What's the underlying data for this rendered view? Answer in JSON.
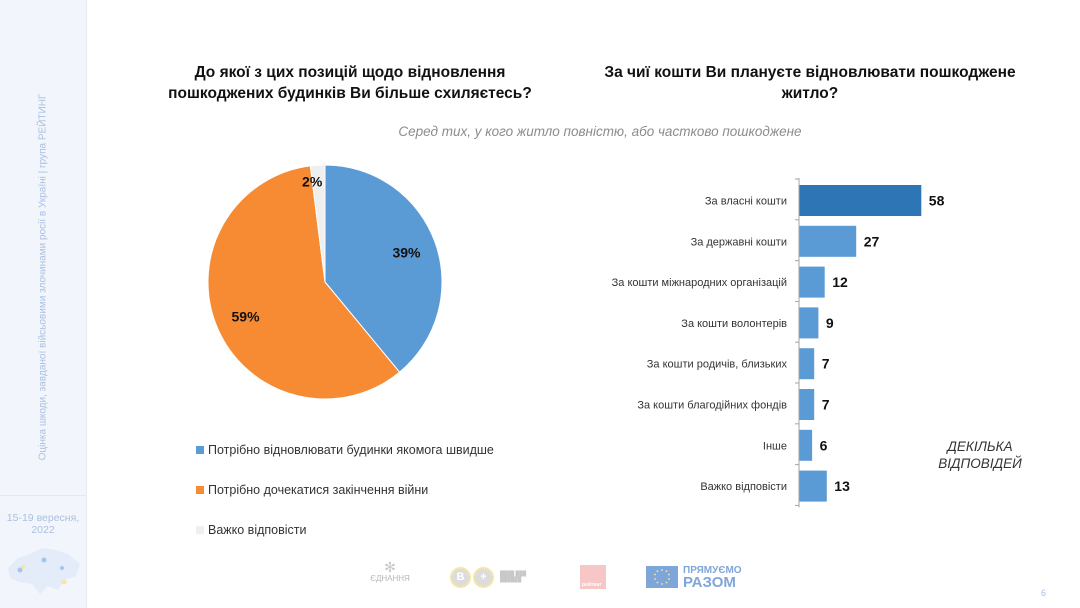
{
  "sidebar": {
    "vertical_text": "Оцінка шкоди, завданої війсьовими злочинами росії в Україні | група РЕЙТИНГ",
    "date_line1": "15-19 вересня,",
    "date_line2": "2022",
    "map_icon": "ukraine-map-icon"
  },
  "left": {
    "title": "До якої з цих позицій щодо відновлення пошкоджених будинків Ви більше схиляєтесь?"
  },
  "right": {
    "title": "За чиї кошти Ви плануєте відновлювати пошкоджене житло?",
    "note": "ДЕКІЛЬКА ВІДПОВІДЕЙ"
  },
  "subtitle": "Серед тих, у кого житло повністю, або частково пошкоджене",
  "footer": {
    "logos": [
      "ЄДНАННЯ",
      "В+",
      "РЕЙТИНГ",
      "ПРЯМУЄМО РАЗОМ"
    ],
    "eu_line1": "ПРЯМУЄМО",
    "eu_line2": "РАЗОМ",
    "ednannia": "ЄДНАННЯ",
    "rating": "рейтинг",
    "page_number": "6"
  },
  "colors": {
    "blue": "#5b9bd5",
    "dark_blue": "#2e75b6",
    "orange": "#f68b33",
    "light_gray": "#efefef"
  },
  "chart_data": [
    {
      "type": "pie",
      "title": "До якої з цих позицій щодо відновлення пошкоджених будинків Ви більше схиляєтесь?",
      "legend_position": "bottom",
      "slices": [
        {
          "label": "Потрібно відновлювати  будинки якомога швидше",
          "value": 39,
          "display": "39%",
          "color": "#5b9bd5"
        },
        {
          "label": "Потрібно дочекатися закінчення війни",
          "value": 59,
          "display": "59%",
          "color": "#f68b33"
        },
        {
          "label": "Важко відповісти",
          "value": 2,
          "display": "2%",
          "color": "#efefef"
        }
      ]
    },
    {
      "type": "bar",
      "orientation": "horizontal",
      "title": "За чиї кошти Ви плануєте відновлювати пошкоджене житло?",
      "xlabel": "",
      "ylabel": "",
      "xlim": [
        0,
        100
      ],
      "grid": false,
      "categories": [
        "За власні кошти",
        "За державні кошти",
        "За кошти міжнародних організацій",
        "За кошти волонтерів",
        "За кошти родичів, близьких",
        "За кошти благодійних фондів",
        "Інше",
        "Важко відповісти"
      ],
      "values": [
        58,
        27,
        12,
        9,
        7,
        7,
        6,
        13
      ],
      "highlight_index": 0
    }
  ]
}
